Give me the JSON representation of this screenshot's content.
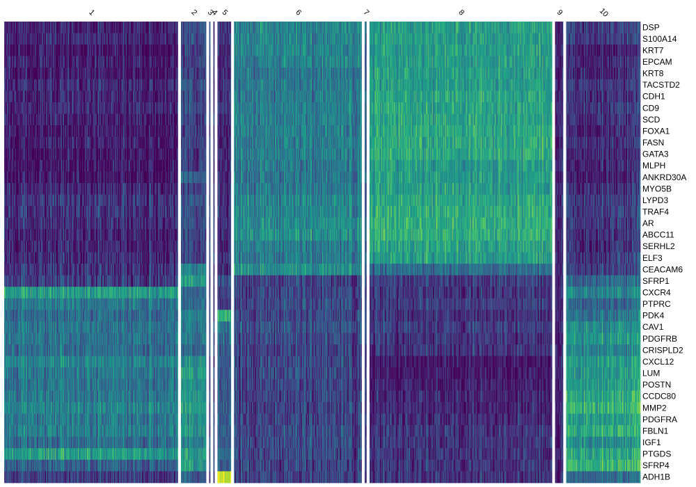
{
  "chart_data": {
    "type": "heatmap",
    "title": "",
    "xlabel": "",
    "ylabel": "",
    "colormap": "viridis",
    "colors": [
      "#440154",
      "#482173",
      "#433e85",
      "#38598c",
      "#2d708e",
      "#25858e",
      "#1e9b8a",
      "#2ab07f",
      "#51c56a",
      "#86d549",
      "#c2df23",
      "#fde725"
    ],
    "clusters": [
      {
        "label": "1",
        "cells": 253
      },
      {
        "label": "2",
        "cells": 37
      },
      {
        "label": "3",
        "cells": 2
      },
      {
        "label": "4",
        "cells": 2
      },
      {
        "label": "5",
        "cells": 20
      },
      {
        "label": "6",
        "cells": 186
      },
      {
        "label": "7",
        "cells": 3
      },
      {
        "label": "8",
        "cells": 266
      },
      {
        "label": "9",
        "cells": 12
      },
      {
        "label": "10",
        "cells": 108
      }
    ],
    "genes": [
      "DSP",
      "S100A14",
      "KRT7",
      "EPCAM",
      "KRT8",
      "TACSTD2",
      "CDH1",
      "CD9",
      "SCD",
      "FOXA1",
      "FASN",
      "GATA3",
      "MLPH",
      "ANKRD30A",
      "MYO5B",
      "LYPD3",
      "TRAF4",
      "AR",
      "ABCC11",
      "SERHL2",
      "ELF3",
      "CEACAM6",
      "SFRP1",
      "CXCR4",
      "PTPRC",
      "PDK4",
      "CAV1",
      "PDGFRB",
      "CRISPLD2",
      "CXCL12",
      "LUM",
      "POSTN",
      "CCDC80",
      "MMP2",
      "PDGFRA",
      "FBLN1",
      "IGF1",
      "PTGDS",
      "SFRP4",
      "ADH1B"
    ],
    "mean_expression": [
      [
        0.1,
        0.25,
        0.2,
        0.2,
        0.15,
        0.45,
        0.3,
        0.55,
        0.15,
        0.2
      ],
      [
        0.1,
        0.25,
        0.2,
        0.2,
        0.15,
        0.45,
        0.3,
        0.55,
        0.15,
        0.2
      ],
      [
        0.05,
        0.2,
        0.2,
        0.2,
        0.12,
        0.45,
        0.3,
        0.55,
        0.12,
        0.1
      ],
      [
        0.08,
        0.2,
        0.2,
        0.2,
        0.12,
        0.45,
        0.3,
        0.55,
        0.12,
        0.12
      ],
      [
        0.06,
        0.2,
        0.2,
        0.2,
        0.12,
        0.4,
        0.3,
        0.55,
        0.12,
        0.12
      ],
      [
        0.12,
        0.25,
        0.2,
        0.2,
        0.15,
        0.4,
        0.3,
        0.55,
        0.15,
        0.18
      ],
      [
        0.1,
        0.22,
        0.2,
        0.2,
        0.14,
        0.42,
        0.3,
        0.58,
        0.14,
        0.15
      ],
      [
        0.12,
        0.25,
        0.2,
        0.2,
        0.15,
        0.42,
        0.3,
        0.58,
        0.15,
        0.18
      ],
      [
        0.08,
        0.22,
        0.2,
        0.2,
        0.14,
        0.42,
        0.3,
        0.58,
        0.14,
        0.15
      ],
      [
        0.06,
        0.2,
        0.2,
        0.2,
        0.12,
        0.42,
        0.3,
        0.6,
        0.12,
        0.12
      ],
      [
        0.08,
        0.22,
        0.2,
        0.2,
        0.14,
        0.42,
        0.3,
        0.6,
        0.14,
        0.15
      ],
      [
        0.06,
        0.2,
        0.2,
        0.2,
        0.12,
        0.42,
        0.3,
        0.6,
        0.12,
        0.12
      ],
      [
        0.06,
        0.2,
        0.2,
        0.2,
        0.12,
        0.4,
        0.3,
        0.55,
        0.12,
        0.12
      ],
      [
        0.05,
        0.35,
        0.2,
        0.2,
        0.12,
        0.4,
        0.3,
        0.55,
        0.12,
        0.1
      ],
      [
        0.1,
        0.22,
        0.2,
        0.2,
        0.14,
        0.4,
        0.3,
        0.55,
        0.14,
        0.15
      ],
      [
        0.15,
        0.25,
        0.2,
        0.2,
        0.15,
        0.45,
        0.3,
        0.58,
        0.15,
        0.2
      ],
      [
        0.15,
        0.25,
        0.2,
        0.2,
        0.15,
        0.45,
        0.3,
        0.6,
        0.15,
        0.2
      ],
      [
        0.12,
        0.25,
        0.2,
        0.2,
        0.15,
        0.48,
        0.3,
        0.62,
        0.15,
        0.18
      ],
      [
        0.1,
        0.22,
        0.2,
        0.2,
        0.14,
        0.5,
        0.3,
        0.62,
        0.14,
        0.15
      ],
      [
        0.1,
        0.22,
        0.2,
        0.2,
        0.14,
        0.42,
        0.3,
        0.58,
        0.14,
        0.15
      ],
      [
        0.12,
        0.22,
        0.2,
        0.2,
        0.14,
        0.4,
        0.3,
        0.55,
        0.14,
        0.18
      ],
      [
        0.15,
        0.45,
        0.2,
        0.2,
        0.15,
        0.5,
        0.3,
        0.35,
        0.15,
        0.2
      ],
      [
        0.18,
        0.55,
        0.2,
        0.2,
        0.25,
        0.2,
        0.2,
        0.18,
        0.15,
        0.35
      ],
      [
        0.55,
        0.35,
        0.2,
        0.2,
        0.2,
        0.2,
        0.2,
        0.15,
        0.15,
        0.45
      ],
      [
        0.4,
        0.35,
        0.2,
        0.2,
        0.2,
        0.22,
        0.2,
        0.18,
        0.15,
        0.35
      ],
      [
        0.35,
        0.45,
        0.2,
        0.2,
        0.65,
        0.22,
        0.2,
        0.15,
        0.15,
        0.4
      ],
      [
        0.38,
        0.4,
        0.2,
        0.2,
        0.4,
        0.25,
        0.2,
        0.18,
        0.15,
        0.5
      ],
      [
        0.38,
        0.4,
        0.2,
        0.2,
        0.35,
        0.22,
        0.2,
        0.15,
        0.15,
        0.55
      ],
      [
        0.35,
        0.35,
        0.2,
        0.2,
        0.3,
        0.2,
        0.2,
        0.15,
        0.15,
        0.45
      ],
      [
        0.45,
        0.5,
        0.2,
        0.2,
        0.3,
        0.22,
        0.2,
        0.05,
        0.15,
        0.55
      ],
      [
        0.4,
        0.55,
        0.2,
        0.2,
        0.3,
        0.22,
        0.2,
        0.06,
        0.15,
        0.55
      ],
      [
        0.38,
        0.5,
        0.2,
        0.2,
        0.3,
        0.2,
        0.2,
        0.08,
        0.15,
        0.55
      ],
      [
        0.4,
        0.55,
        0.2,
        0.2,
        0.3,
        0.2,
        0.2,
        0.1,
        0.15,
        0.6
      ],
      [
        0.45,
        0.55,
        0.2,
        0.2,
        0.3,
        0.2,
        0.2,
        0.1,
        0.15,
        0.65
      ],
      [
        0.4,
        0.5,
        0.2,
        0.2,
        0.3,
        0.2,
        0.2,
        0.12,
        0.15,
        0.55
      ],
      [
        0.42,
        0.55,
        0.2,
        0.2,
        0.3,
        0.22,
        0.2,
        0.15,
        0.15,
        0.62
      ],
      [
        0.35,
        0.45,
        0.2,
        0.2,
        0.3,
        0.22,
        0.2,
        0.15,
        0.15,
        0.5
      ],
      [
        0.55,
        0.55,
        0.2,
        0.2,
        0.35,
        0.22,
        0.2,
        0.15,
        0.15,
        0.6
      ],
      [
        0.3,
        0.55,
        0.2,
        0.2,
        0.3,
        0.2,
        0.2,
        0.15,
        0.15,
        0.65
      ],
      [
        0.18,
        0.3,
        0.2,
        0.2,
        0.95,
        0.2,
        0.2,
        0.15,
        0.15,
        0.35
      ]
    ],
    "value_range": [
      0,
      1
    ]
  }
}
